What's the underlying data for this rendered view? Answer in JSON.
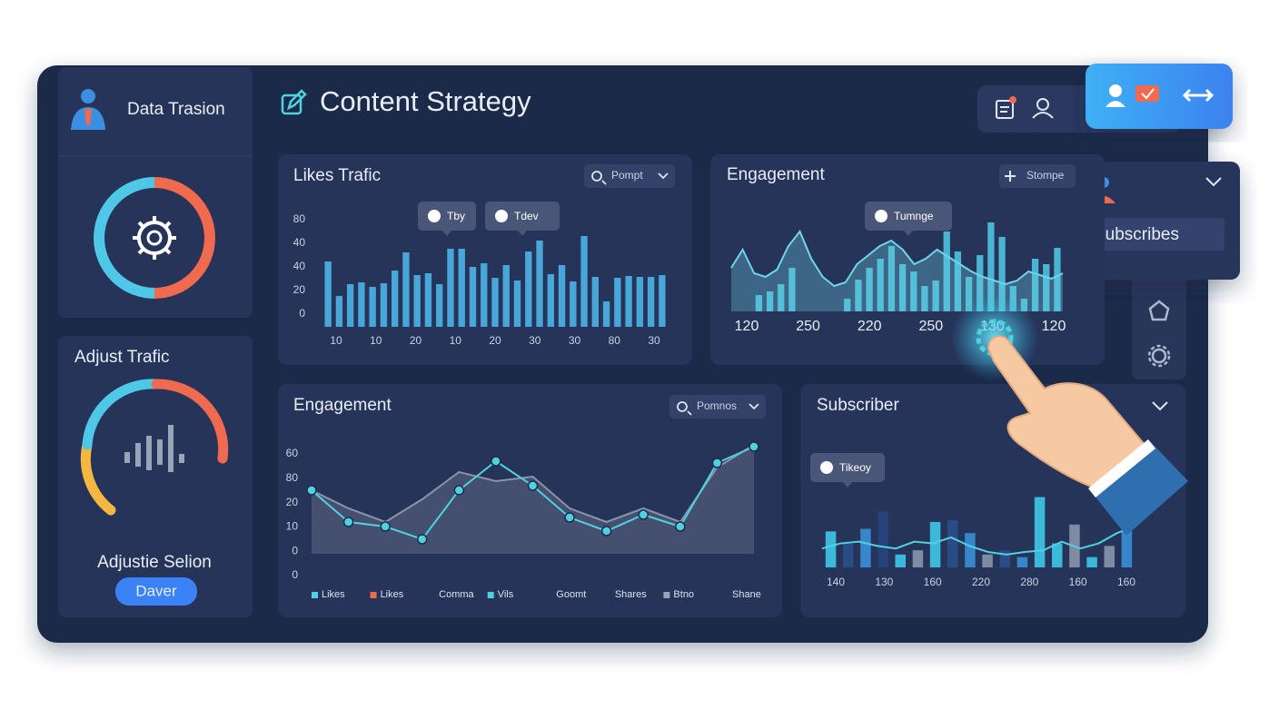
{
  "sidebar": {
    "brand": "Data Trasion",
    "panel_title": "Adjust Trafic",
    "panel_subtitle": "Adjustie Selion",
    "button": "Daver"
  },
  "header": {
    "title": "Content Strategy"
  },
  "popup": {
    "label": "Subscribes"
  },
  "chart_data": [
    {
      "type": "bar",
      "title": "Likes Trafic",
      "dropdown": "Pompt",
      "tooltips": [
        "Tby",
        "Tdev"
      ],
      "y_labels": [
        "80",
        "40",
        "40",
        "20",
        "0"
      ],
      "x_labels": [
        "10",
        "10",
        "20",
        "10",
        "20",
        "30",
        "30",
        "80",
        "30"
      ],
      "ylim": [
        0,
        115
      ],
      "series": [
        {
          "color": "#4db3e6",
          "values": [
            72,
            34,
            47,
            49,
            44,
            48,
            62,
            82,
            57,
            59,
            47,
            86,
            86,
            66,
            70,
            54,
            68,
            51,
            83,
            95,
            58,
            68,
            50,
            100,
            55,
            28,
            54,
            56,
            55,
            55,
            57
          ]
        }
      ]
    },
    {
      "type": "combo",
      "title": "Engagement",
      "dropdown": "Stompe",
      "tooltips": [
        "Tumnge"
      ],
      "x_labels": [
        "120",
        "250",
        "220",
        "250",
        "130",
        "120"
      ],
      "ylim": [
        0,
        108
      ],
      "series": [
        {
          "color": "#4fc3e0",
          "values": [
            0,
            0,
            18,
            22,
            30,
            48,
            0,
            0,
            0,
            0,
            14,
            35,
            48,
            58,
            72,
            52,
            44,
            28,
            34,
            88,
            66,
            38,
            62,
            98,
            82,
            28,
            14,
            58,
            52,
            70
          ]
        },
        {
          "color": "#6fd6ea",
          "area": true,
          "values": [
            48,
            68,
            42,
            38,
            46,
            72,
            88,
            58,
            38,
            28,
            32,
            52,
            62,
            72,
            78,
            68,
            52,
            58,
            68,
            60,
            52,
            44,
            38,
            34,
            30,
            34,
            44,
            40,
            36,
            42
          ]
        }
      ]
    },
    {
      "type": "line",
      "title": "Engagement",
      "dropdown": "Pomnos",
      "y_labels": [
        "60",
        "80",
        "20",
        "10",
        "0",
        "0"
      ],
      "ylim": [
        0,
        120
      ],
      "legend": [
        {
          "label": "Likes",
          "color": "#4fd1e0"
        },
        {
          "label": "Likes",
          "color": "#f06a50"
        },
        {
          "label": "Comma"
        },
        {
          "label": "Vils",
          "color": "#4fd1e0"
        },
        {
          "label": "Goomt"
        },
        {
          "label": "Shares"
        },
        {
          "label": "Btno",
          "color": "#9aa4b8"
        },
        {
          "label": "Shane"
        }
      ],
      "series": [
        {
          "color": "#8a93a8",
          "area": true,
          "values": [
            70,
            50,
            35,
            60,
            90,
            80,
            85,
            50,
            35,
            50,
            35,
            95,
            120
          ]
        },
        {
          "color": "#4fd1e0",
          "markers": true,
          "values": [
            70,
            35,
            30,
            16,
            70,
            102,
            75,
            40,
            25,
            43,
            30,
            100,
            118
          ]
        }
      ]
    },
    {
      "type": "combo",
      "title": "Subscriber",
      "tooltips": [
        "Tikeoy"
      ],
      "x_labels": [
        "140",
        "130",
        "160",
        "220",
        "280",
        "160",
        "160"
      ],
      "ylim": [
        0,
        90
      ],
      "series": [
        {
          "colors": [
            "#3fc7e8",
            "#2a4f8a",
            "#3a8fd8",
            "#27457c",
            "#3fc7e8",
            "#8a95ab",
            "#3fc7e8",
            "#2a4f8a",
            "#3a8fd8",
            "#8a95ab",
            "#2a4f8a",
            "#3a8fd8",
            "#3fc7e8",
            "#3fc7e8",
            "#8a95ab",
            "#3fc7e8",
            "#8a95ab",
            "#3a8fd8"
          ],
          "values": [
            42,
            28,
            45,
            65,
            15,
            20,
            53,
            55,
            40,
            15,
            20,
            12,
            82,
            28,
            50,
            12,
            25,
            70
          ]
        },
        {
          "color": "#4fd1e0",
          "values": [
            22,
            28,
            30,
            25,
            22,
            30,
            28,
            35,
            25,
            18,
            15,
            18,
            20,
            30,
            22,
            28,
            40,
            48
          ]
        }
      ]
    }
  ]
}
